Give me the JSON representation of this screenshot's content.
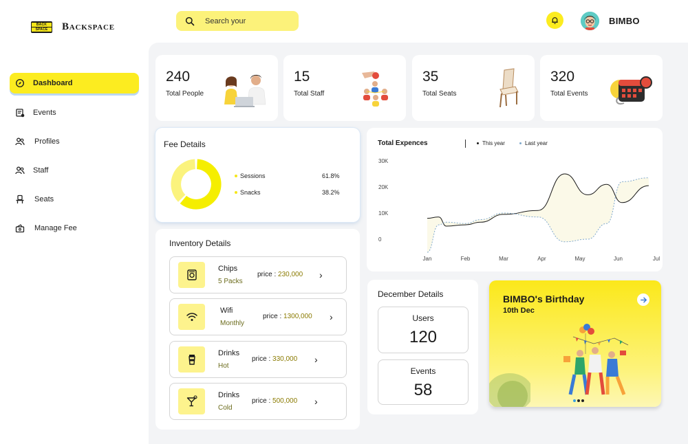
{
  "app": {
    "logo_top": "BACK",
    "logo_bottom": "SPACE",
    "name": "Backspace"
  },
  "sidebar": {
    "items": [
      {
        "label": "Dashboard",
        "icon": "compass-icon",
        "active": true
      },
      {
        "label": "Events",
        "icon": "calendar-icon"
      },
      {
        "label": "Profiles",
        "icon": "users-icon"
      },
      {
        "label": "Staff",
        "icon": "staff-icon"
      },
      {
        "label": "Seats",
        "icon": "seat-icon"
      },
      {
        "label": "Manage Fee",
        "icon": "wallet-icon"
      }
    ]
  },
  "header": {
    "search_placeholder": "Search your",
    "username": "BIMBO"
  },
  "stats": [
    {
      "value": "240",
      "label": "Total People",
      "icon": "people-laptop-icon"
    },
    {
      "value": "15",
      "label": "Total Staff",
      "icon": "staff-network-icon"
    },
    {
      "value": "35",
      "label": "Total Seats",
      "icon": "chair-icon"
    },
    {
      "value": "320",
      "label": "Total Events",
      "icon": "calendar-3d-icon"
    }
  ],
  "fee": {
    "title": "Fee Details",
    "items": [
      {
        "label": "Sessions",
        "pct": "61.8%",
        "value": 61.8,
        "color": "#f5ee00"
      },
      {
        "label": "Snacks",
        "pct": "38.2%",
        "value": 38.2,
        "color": "#fbf37d"
      }
    ]
  },
  "inventory": {
    "title": "Inventory Details",
    "price_label": "price :",
    "items": [
      {
        "name": "Chips",
        "sub": "5 Packs",
        "price": "230,000",
        "icon": "chips-icon"
      },
      {
        "name": "Wifi",
        "sub": "Monthly",
        "price": "1300,000",
        "icon": "wifi-icon"
      },
      {
        "name": "Drinks",
        "sub": "Hot",
        "price": "330,000",
        "icon": "cup-icon"
      },
      {
        "name": "Drinks",
        "sub": "Cold",
        "price": "500,000",
        "icon": "cocktail-icon"
      }
    ]
  },
  "expenses": {
    "title": "Total Expences",
    "legend": [
      "This year",
      "Last year"
    ]
  },
  "chart_data": {
    "type": "line",
    "title": "Total Expences",
    "categories": [
      "Jan",
      "Feb",
      "Mar",
      "Apr",
      "May",
      "Jun",
      "Jul"
    ],
    "y_ticks": [
      "30K",
      "20K",
      "10K",
      "0"
    ],
    "ylim": [
      0,
      30000
    ],
    "x": [
      0.0,
      0.3,
      0.5,
      1.0,
      1.4,
      2.0,
      2.9,
      3.6,
      4.2,
      4.7,
      5.1,
      5.8
    ],
    "series": [
      {
        "name": "This year",
        "color": "#1a1a1a",
        "style": "solid",
        "values": [
          8000,
          8500,
          5000,
          5500,
          6500,
          9500,
          11000,
          25000,
          17000,
          21000,
          14000,
          20500
        ]
      },
      {
        "name": "Last year",
        "color": "#7fa8cc",
        "style": "dashed",
        "values": [
          -5000,
          5500,
          6500,
          6000,
          7500,
          10000,
          8500,
          -1000,
          0,
          6000,
          22000,
          23500
        ]
      }
    ],
    "grid": false,
    "legend_position": "top"
  },
  "december": {
    "title": "December Details",
    "boxes": [
      {
        "label": "Users",
        "value": "120"
      },
      {
        "label": "Events",
        "value": "58"
      }
    ]
  },
  "birthday": {
    "title": "BIMBO's Birthday",
    "date": "10th Dec"
  }
}
